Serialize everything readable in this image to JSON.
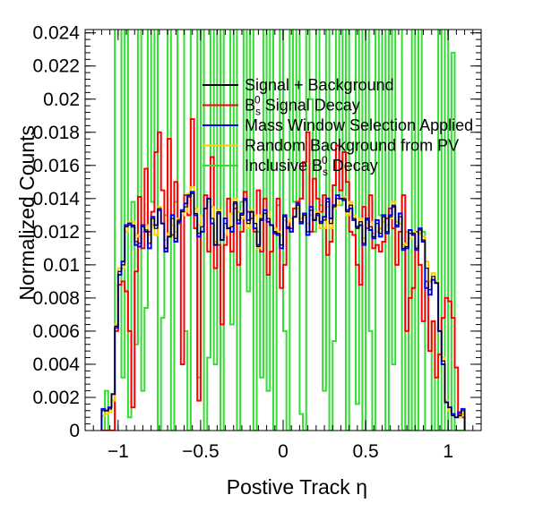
{
  "chart_data": {
    "type": "histogram-step",
    "xlabel": "Postive Track  η",
    "ylabel": "Normalized Counts",
    "xlim": [
      -1.2,
      1.2
    ],
    "ylim": [
      0,
      0.0242
    ],
    "xticks": [
      -1,
      -0.5,
      0,
      0.5,
      1
    ],
    "xtick_labels": [
      "−1",
      "−0.5",
      "0",
      "0.5",
      "1"
    ],
    "yticks": [
      0,
      0.002,
      0.004,
      0.006,
      0.008,
      0.01,
      0.012,
      0.014,
      0.016,
      0.018,
      0.02,
      0.022,
      0.024
    ],
    "ytick_labels": [
      "0",
      "0.002",
      "0.004",
      "0.006",
      "0.008",
      "0.01",
      "0.012",
      "0.014",
      "0.016",
      "0.018",
      "0.02",
      "0.022",
      "0.024"
    ],
    "bins": {
      "min": -1.1,
      "max": 1.1,
      "count": 110
    },
    "legend": {
      "position": "top-center",
      "entries": [
        {
          "label": "Signal + Background",
          "color": "#000000"
        },
        {
          "label": "B_s^0 Signal Decay",
          "base": "B",
          "sup": "0",
          "sub": "s",
          "rest": " Signal Decay",
          "color": "#ff0000"
        },
        {
          "label": "Mass Window Selection Applied",
          "color": "#0000ff"
        },
        {
          "label": "Random Background from PV",
          "color": "#ffcc00"
        },
        {
          "label": "Inclusive B_s^0 Decay",
          "pre": "Inclusive B",
          "sup": "0",
          "sub": "s",
          "rest": " Decay",
          "color": "#33dd33"
        }
      ]
    },
    "series": [
      {
        "name": "Signal + Background",
        "color": "#000000",
        "values": [
          0.0012,
          0.0012,
          0.0013,
          0.0022,
          0.0063,
          0.0096,
          0.01,
          0.0123,
          0.0124,
          0.0124,
          0.0114,
          0.0113,
          0.0123,
          0.0121,
          0.0113,
          0.0128,
          0.0122,
          0.0134,
          0.0125,
          0.011,
          0.0117,
          0.0128,
          0.0116,
          0.0127,
          0.0132,
          0.0135,
          0.0141,
          0.0143,
          0.0131,
          0.0119,
          0.0123,
          0.0134,
          0.014,
          0.0128,
          0.0112,
          0.0132,
          0.0115,
          0.0125,
          0.0122,
          0.0123,
          0.0138,
          0.0127,
          0.013,
          0.0139,
          0.0125,
          0.0132,
          0.0125,
          0.0111,
          0.0128,
          0.0131,
          0.0128,
          0.0124,
          0.012,
          0.0119,
          0.0112,
          0.0129,
          0.0123,
          0.0122,
          0.0129,
          0.0136,
          0.0126,
          0.013,
          0.012,
          0.0133,
          0.0127,
          0.0131,
          0.0125,
          0.0127,
          0.0138,
          0.0125,
          0.0135,
          0.014,
          0.014,
          0.014,
          0.0132,
          0.0136,
          0.0128,
          0.0122,
          0.0126,
          0.0113,
          0.0127,
          0.0123,
          0.0117,
          0.0125,
          0.0119,
          0.0129,
          0.012,
          0.0129,
          0.0136,
          0.0124,
          0.0129,
          0.011,
          0.0111,
          0.0119,
          0.0119,
          0.011,
          0.0121,
          0.0115,
          0.0098,
          0.0085,
          0.0093,
          0.0089,
          0.006,
          0.0042,
          0.0017,
          0.0014,
          0.0009,
          0.0008,
          0.0009,
          0.0012
        ]
      },
      {
        "name": "B_s^0 Signal Decay",
        "color": "#ff0000",
        "values": [
          0.0,
          0.0,
          0.0,
          0.0,
          0.006,
          0.0088,
          0.009,
          0.0084,
          0.006,
          0.0014,
          0.0096,
          0.0141,
          0.011,
          0.0158,
          0.012,
          0.0132,
          0.0168,
          0.018,
          0.0145,
          0.011,
          0.0176,
          0.0118,
          0.015,
          0.0125,
          0.004,
          0.0142,
          0.013,
          0.0188,
          0.0122,
          0.0018,
          0.012,
          0.0142,
          0.0108,
          0.0165,
          0.0098,
          0.0112,
          0.0064,
          0.0112,
          0.014,
          0.0108,
          0.0134,
          0.01,
          0.012,
          0.0144,
          0.0132,
          0.0128,
          0.012,
          0.0145,
          0.0108,
          0.014,
          0.0094,
          0.0108,
          0.012,
          0.014,
          0.0086,
          0.01,
          0.0122,
          0.0128,
          0.0134,
          0.0138,
          0.014,
          0.0162,
          0.018,
          0.012,
          0.0152,
          0.014,
          0.0132,
          0.0142,
          0.0106,
          0.0114,
          0.0148,
          0.0172,
          0.0145,
          0.0168,
          0.015,
          0.012,
          0.0118,
          0.01,
          0.0088,
          0.0135,
          0.0122,
          0.0142,
          0.011,
          0.0112,
          0.0108,
          0.0114,
          0.0128,
          0.0134,
          0.0122,
          0.01,
          0.012,
          0.0142,
          0.006,
          0.008,
          0.0086,
          0.012,
          0.01,
          0.0066,
          0.009,
          0.0048,
          0.0066,
          0.0032,
          0.0046,
          0.0068,
          0.008,
          0.0078,
          0.0068,
          0.0038,
          0.001,
          0.0008
        ]
      },
      {
        "name": "Mass Window Selection Applied",
        "color": "#0000ff",
        "values": [
          0.0013,
          0.0012,
          0.0014,
          0.0022,
          0.0062,
          0.0094,
          0.0102,
          0.0124,
          0.0125,
          0.0123,
          0.0112,
          0.0111,
          0.0124,
          0.012,
          0.011,
          0.0129,
          0.0124,
          0.0133,
          0.0125,
          0.0108,
          0.0117,
          0.013,
          0.0114,
          0.0126,
          0.0133,
          0.0137,
          0.0142,
          0.0144,
          0.013,
          0.0117,
          0.012,
          0.0134,
          0.014,
          0.0125,
          0.0112,
          0.0131,
          0.0115,
          0.0128,
          0.0122,
          0.012,
          0.0137,
          0.0125,
          0.0131,
          0.014,
          0.0127,
          0.0132,
          0.0122,
          0.0112,
          0.0127,
          0.0133,
          0.0126,
          0.0124,
          0.0119,
          0.0118,
          0.011,
          0.013,
          0.0122,
          0.012,
          0.0129,
          0.0137,
          0.0125,
          0.0131,
          0.0118,
          0.0135,
          0.0127,
          0.013,
          0.0126,
          0.0129,
          0.014,
          0.0128,
          0.0136,
          0.0142,
          0.014,
          0.0139,
          0.0133,
          0.0134,
          0.0127,
          0.0123,
          0.0124,
          0.0112,
          0.0128,
          0.0121,
          0.0116,
          0.0127,
          0.0117,
          0.013,
          0.0119,
          0.013,
          0.0135,
          0.0123,
          0.0131,
          0.0109,
          0.011,
          0.0121,
          0.0118,
          0.0109,
          0.0122,
          0.0114,
          0.0086,
          0.0082,
          0.0091,
          0.0089,
          0.006,
          0.004,
          0.0017,
          0.0014,
          0.001,
          0.0008,
          0.0011,
          0.0013
        ]
      },
      {
        "name": "Random Background from PV",
        "color": "#ffcc00",
        "values": [
          0.0009,
          0.001,
          0.0011,
          0.0018,
          0.0064,
          0.0098,
          0.0098,
          0.012,
          0.0126,
          0.0126,
          0.0118,
          0.0117,
          0.012,
          0.0124,
          0.0118,
          0.0124,
          0.0118,
          0.0135,
          0.0125,
          0.0115,
          0.0119,
          0.0124,
          0.012,
          0.0128,
          0.013,
          0.0132,
          0.0143,
          0.0147,
          0.0134,
          0.0124,
          0.013,
          0.0134,
          0.0138,
          0.0135,
          0.0114,
          0.0133,
          0.0115,
          0.0118,
          0.0122,
          0.0131,
          0.014,
          0.0132,
          0.0128,
          0.0138,
          0.0122,
          0.0133,
          0.013,
          0.011,
          0.013,
          0.0127,
          0.0132,
          0.0124,
          0.0122,
          0.012,
          0.0118,
          0.0127,
          0.0126,
          0.0128,
          0.0129,
          0.0134,
          0.0128,
          0.0129,
          0.0125,
          0.013,
          0.0128,
          0.0132,
          0.0122,
          0.0122,
          0.0135,
          0.0122,
          0.0134,
          0.0136,
          0.014,
          0.0141,
          0.013,
          0.0138,
          0.013,
          0.0122,
          0.0128,
          0.0116,
          0.0125,
          0.0126,
          0.0119,
          0.012,
          0.0122,
          0.0126,
          0.0124,
          0.0128,
          0.0138,
          0.0126,
          0.0125,
          0.0112,
          0.0113,
          0.0116,
          0.012,
          0.0111,
          0.0119,
          0.0117,
          0.0102,
          0.009,
          0.0095,
          0.009,
          0.006,
          0.0044,
          0.0018,
          0.0012,
          0.0009,
          0.0008,
          0.0008,
          0.001
        ]
      },
      {
        "name": "Inclusive B_s^0 Decay",
        "color": "#33dd33",
        "values": [
          0.0,
          0.0024,
          0.0,
          0.0,
          0.025,
          0.025,
          0.0032,
          0.025,
          0.0008,
          0.0138,
          0.0052,
          0.025,
          0.0024,
          0.0074,
          0.025,
          0.0138,
          0.025,
          0.0,
          0.0068,
          0.013,
          0.025,
          0.0,
          0.0138,
          0.025,
          0.025,
          0.006,
          0.0,
          0.025,
          0.025,
          0.0032,
          0.025,
          0.0,
          0.0044,
          0.025,
          0.004,
          0.025,
          0.0,
          0.025,
          0.025,
          0.0064,
          0.025,
          0.0,
          0.0138,
          0.025,
          0.0084,
          0.025,
          0.0,
          0.012,
          0.0032,
          0.025,
          0.0024,
          0.025,
          0.0,
          0.0136,
          0.025,
          0.006,
          0.0,
          0.025,
          0.0138,
          0.025,
          0.001,
          0.0,
          0.025,
          0.02,
          0.012,
          0.025,
          0.0136,
          0.0024,
          0.025,
          0.0,
          0.0054,
          0.025,
          0.0136,
          0.025,
          0.0,
          0.025,
          0.025,
          0.0016,
          0.025,
          0.0,
          0.025,
          0.006,
          0.0,
          0.025,
          0.013,
          0.025,
          0.0,
          0.025,
          0.004,
          0.025,
          0.025,
          0.0,
          0.012,
          0.0,
          0.025,
          0.0,
          0.025,
          0.012,
          0.0,
          0.0,
          0.0066,
          0.0,
          0.025,
          0.0,
          0.025,
          0.0,
          0.0228,
          0.0,
          0.0,
          0.0
        ]
      }
    ]
  }
}
